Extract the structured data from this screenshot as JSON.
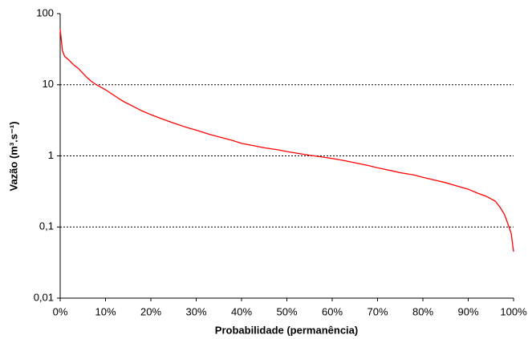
{
  "chart_data": {
    "type": "line",
    "x_label": "Probabilidade (permanência)",
    "y_label": "Vazão (m³.s⁻¹)",
    "x": [
      0,
      0.3,
      0.5,
      1,
      2,
      3,
      4,
      5,
      6,
      7,
      8,
      10,
      12,
      14,
      16,
      18,
      20,
      22,
      25,
      28,
      30,
      33,
      35,
      38,
      40,
      43,
      45,
      48,
      50,
      53,
      55,
      57,
      60,
      63,
      65,
      68,
      70,
      73,
      75,
      78,
      80,
      83,
      85,
      88,
      90,
      92,
      94,
      96,
      97,
      98,
      99,
      99.5,
      100
    ],
    "values": [
      60,
      40,
      30,
      25,
      22,
      19,
      17,
      14.5,
      12.5,
      11,
      10,
      8.5,
      7,
      5.8,
      5,
      4.3,
      3.8,
      3.4,
      2.9,
      2.5,
      2.3,
      2.0,
      1.85,
      1.65,
      1.5,
      1.38,
      1.3,
      1.22,
      1.15,
      1.07,
      1.02,
      0.98,
      0.92,
      0.85,
      0.8,
      0.73,
      0.68,
      0.62,
      0.58,
      0.54,
      0.5,
      0.45,
      0.42,
      0.37,
      0.34,
      0.3,
      0.27,
      0.23,
      0.19,
      0.15,
      0.1,
      0.08,
      0.045
    ],
    "color": "#ff0000",
    "xlim": [
      0,
      100
    ],
    "xticks": [
      {
        "value": 0,
        "label": "0%"
      },
      {
        "value": 10,
        "label": "10%"
      },
      {
        "value": 20,
        "label": "20%"
      },
      {
        "value": 30,
        "label": "30%"
      },
      {
        "value": 40,
        "label": "40%"
      },
      {
        "value": 50,
        "label": "50%"
      },
      {
        "value": 60,
        "label": "60%"
      },
      {
        "value": 70,
        "label": "70%"
      },
      {
        "value": 80,
        "label": "80%"
      },
      {
        "value": 90,
        "label": "90%"
      },
      {
        "value": 100,
        "label": "100%"
      }
    ],
    "ylim": [
      0.01,
      100
    ],
    "yticks": [
      {
        "value": 0.01,
        "label": "0,01"
      },
      {
        "value": 0.1,
        "label": "0,1"
      },
      1,
      10,
      100
    ],
    "yscale": "log",
    "grid": true
  }
}
